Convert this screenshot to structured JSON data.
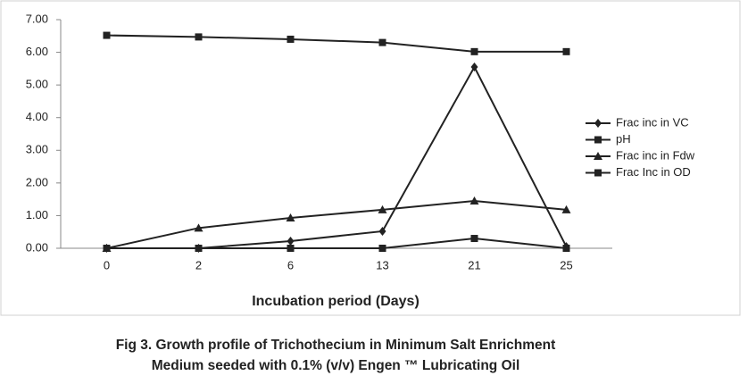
{
  "chart_data": {
    "type": "line",
    "x_label": "Incubation period (Days)",
    "caption": [
      "Fig 3. Growth profile of Trichothecium in Minimum Salt Enrichment",
      "Medium seeded with 0.1% (v/v) Engen ™ Lubricating Oil"
    ],
    "categories": [
      "0",
      "2",
      "6",
      "13",
      "21",
      "25"
    ],
    "series": [
      {
        "name": "Frac inc in VC",
        "color": "#222222",
        "marker": "diamond",
        "values": [
          0,
          0,
          0.22,
          0.52,
          5.55,
          0.05
        ]
      },
      {
        "name": "pH",
        "color": "#222222",
        "marker": "square",
        "values": [
          6.52,
          6.47,
          6.4,
          6.3,
          6.02,
          6.02
        ]
      },
      {
        "name": "Frac inc in Fdw",
        "color": "#222222",
        "marker": "triangle",
        "values": [
          0,
          0.62,
          0.93,
          1.18,
          1.45,
          1.18
        ]
      },
      {
        "name": "Frac Inc in OD",
        "color": "#222222",
        "marker": "square",
        "values": [
          0,
          0,
          0,
          0,
          0.3,
          0
        ]
      }
    ],
    "ylim": [
      0,
      7
    ],
    "yticks": [
      {
        "value": 0,
        "label": "0.00"
      },
      {
        "value": 1,
        "label": "1.00"
      },
      {
        "value": 2,
        "label": "2.00"
      },
      {
        "value": 3,
        "label": "3.00"
      },
      {
        "value": 4,
        "label": "4.00"
      },
      {
        "value": 5,
        "label": "5.00"
      },
      {
        "value": 6,
        "label": "6.00"
      },
      {
        "value": 7,
        "label": "7.00"
      }
    ],
    "legend": "right"
  }
}
